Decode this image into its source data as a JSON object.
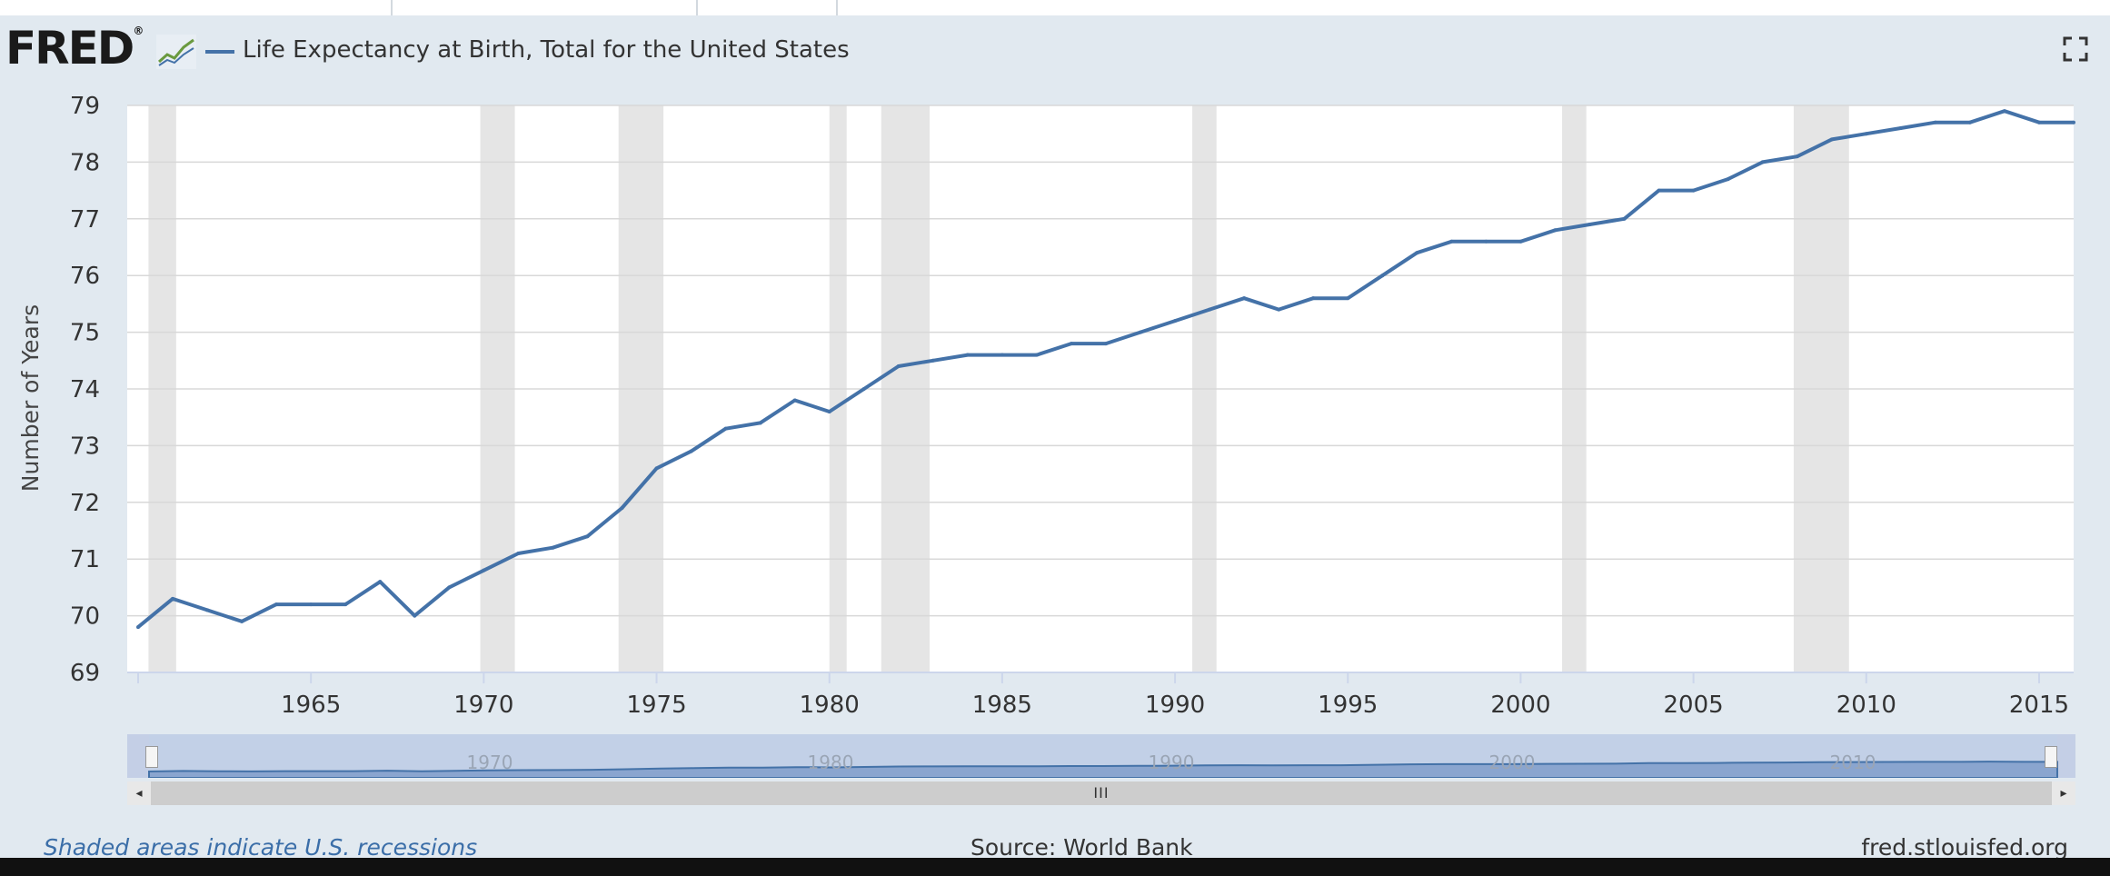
{
  "header": {
    "logo": "FRED",
    "logo_mark": "®",
    "legend_label": "Life Expectancy at Birth, Total for the United States"
  },
  "colors": {
    "series": "#4472a8",
    "recession": "#e5e5e5",
    "background": "#e1e9f0",
    "plot": "#ffffff"
  },
  "chart_data": {
    "type": "line",
    "title": "Life Expectancy at Birth, Total for the United States",
    "xlabel": "",
    "ylabel": "Number of Years",
    "xlim": [
      1960,
      2016
    ],
    "ylim": [
      69,
      79
    ],
    "y_ticks": [
      "69",
      "70",
      "71",
      "72",
      "73",
      "74",
      "75",
      "76",
      "77",
      "78",
      "79"
    ],
    "x_ticks": [
      "1965",
      "1970",
      "1975",
      "1980",
      "1985",
      "1990",
      "1995",
      "2000",
      "2005",
      "2010",
      "2015"
    ],
    "grid": true,
    "legend_position": "top-left",
    "series": [
      {
        "name": "Life Expectancy at Birth, Total for the United States",
        "x": [
          1960,
          1961,
          1962,
          1963,
          1964,
          1965,
          1966,
          1967,
          1968,
          1969,
          1970,
          1971,
          1972,
          1973,
          1974,
          1975,
          1976,
          1977,
          1978,
          1979,
          1980,
          1981,
          1982,
          1983,
          1984,
          1985,
          1986,
          1987,
          1988,
          1989,
          1990,
          1991,
          1992,
          1993,
          1994,
          1995,
          1996,
          1997,
          1998,
          1999,
          2000,
          2001,
          2002,
          2003,
          2004,
          2005,
          2006,
          2007,
          2008,
          2009,
          2010,
          2011,
          2012,
          2013,
          2014,
          2015,
          2016
        ],
        "values": [
          69.8,
          70.3,
          70.1,
          69.9,
          70.2,
          70.2,
          70.2,
          70.6,
          70.0,
          70.5,
          70.8,
          71.1,
          71.2,
          71.4,
          71.9,
          72.6,
          72.9,
          73.3,
          73.4,
          73.8,
          73.6,
          74.0,
          74.4,
          74.5,
          74.6,
          74.6,
          74.6,
          74.8,
          74.8,
          75.0,
          75.2,
          75.4,
          75.6,
          75.4,
          75.6,
          75.6,
          76.0,
          76.4,
          76.6,
          76.6,
          76.6,
          76.8,
          76.9,
          77.0,
          77.5,
          77.5,
          77.7,
          78.0,
          78.1,
          78.4,
          78.5,
          78.6,
          78.7,
          78.7,
          78.9,
          78.7,
          78.7
        ]
      }
    ],
    "recessions": [
      [
        1960.3,
        1961.1
      ],
      [
        1969.9,
        1970.9
      ],
      [
        1973.9,
        1975.2
      ],
      [
        1980.0,
        1980.5
      ],
      [
        1981.5,
        1982.9
      ],
      [
        1990.5,
        1991.2
      ],
      [
        2001.2,
        2001.9
      ],
      [
        2007.9,
        2009.5
      ]
    ],
    "navigator_labels": [
      "1970",
      "1980",
      "1990",
      "2000",
      "2010"
    ]
  },
  "scrollbar": {
    "left_arrow": "◂",
    "right_arrow": "▸",
    "thumb_grip": "III"
  },
  "footer": {
    "recession_note": "Shaded areas indicate U.S. recessions",
    "source": "Source: World Bank",
    "site": "fred.stlouisfed.org"
  }
}
